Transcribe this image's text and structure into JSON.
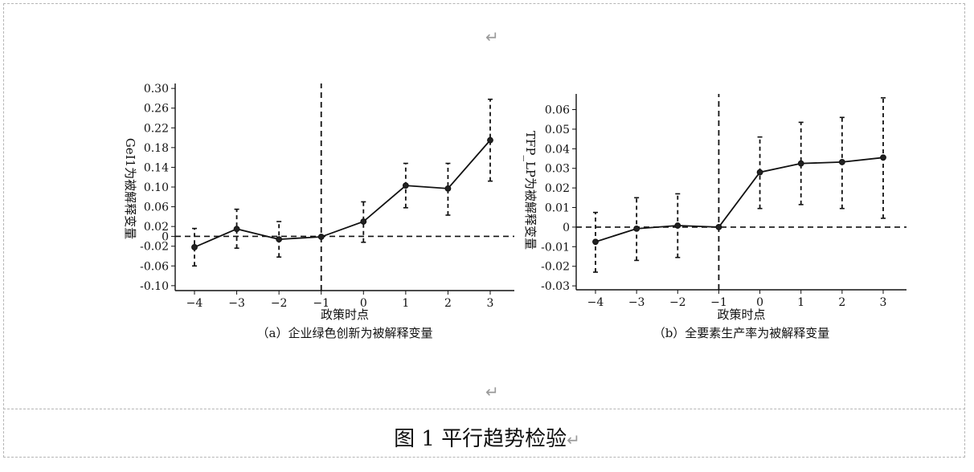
{
  "page": {
    "paragraph_mark": "↵",
    "figure_caption": "图 1  平行趋势检验",
    "caption_mark": "↵"
  },
  "chart_data": [
    {
      "type": "line",
      "subtitle": "（a）企业绿色创新为被解释变量",
      "xlabel": "政策时点",
      "ylabel": "GeI1为被解释变量",
      "x": [
        -4,
        -3,
        -2,
        -1,
        0,
        1,
        2,
        3
      ],
      "x_ticks": [
        "−4",
        "−3",
        "−2",
        "−1",
        "0",
        "1",
        "2",
        "3"
      ],
      "y_ticks": [
        "0.30",
        "0.26",
        "0.22",
        "0.18",
        "0.14",
        "0.10",
        "0.06",
        "0.02",
        "0",
        "-0.02",
        "-0.06",
        "-0.10"
      ],
      "y_tick_values": [
        0.3,
        0.26,
        0.22,
        0.18,
        0.14,
        0.1,
        0.06,
        0.02,
        0,
        -0.02,
        -0.06,
        -0.1
      ],
      "ylim": [
        -0.11,
        0.31
      ],
      "series": [
        {
          "values": [
            -0.022,
            0.015,
            -0.006,
            -0.001,
            0.03,
            0.103,
            0.097,
            0.195
          ],
          "ci_low": [
            -0.06,
            -0.024,
            -0.042,
            -0.001,
            -0.012,
            0.058,
            0.043,
            0.112
          ],
          "ci_high": [
            0.016,
            0.055,
            0.03,
            -0.001,
            0.07,
            0.148,
            0.148,
            0.278
          ]
        }
      ],
      "reference_lines": {
        "horizontal_y": 0,
        "vertical_x": -1,
        "style": "dashed"
      },
      "grid": false
    },
    {
      "type": "line",
      "subtitle": "（b）全要素生产率为被解释变量",
      "xlabel": "政策时点",
      "ylabel": "TFP_LP为被解释变量",
      "x": [
        -4,
        -3,
        -2,
        -1,
        0,
        1,
        2,
        3
      ],
      "x_ticks": [
        "−4",
        "−3",
        "−2",
        "−1",
        "0",
        "1",
        "2",
        "3"
      ],
      "y_ticks": [
        "0.06",
        "0.05",
        "0.04",
        "0.03",
        "0.02",
        "0.01",
        "0",
        "-0.01",
        "-0.02",
        "-0.03"
      ],
      "y_tick_values": [
        0.06,
        0.05,
        0.04,
        0.03,
        0.02,
        0.01,
        0,
        -0.01,
        -0.02,
        -0.03
      ],
      "ylim": [
        -0.032,
        0.068
      ],
      "series": [
        {
          "values": [
            -0.0075,
            -0.0008,
            0.0008,
            0.0,
            0.028,
            0.0325,
            0.0332,
            0.0355
          ],
          "ci_low": [
            -0.023,
            -0.017,
            -0.0155,
            0.0,
            0.0095,
            0.0115,
            0.0095,
            0.0045
          ],
          "ci_high": [
            0.0075,
            0.015,
            0.017,
            0.0,
            0.046,
            0.0535,
            0.056,
            0.066
          ]
        }
      ],
      "reference_lines": {
        "horizontal_y": 0,
        "vertical_x": -1,
        "style": "dashed"
      },
      "grid": false
    }
  ]
}
